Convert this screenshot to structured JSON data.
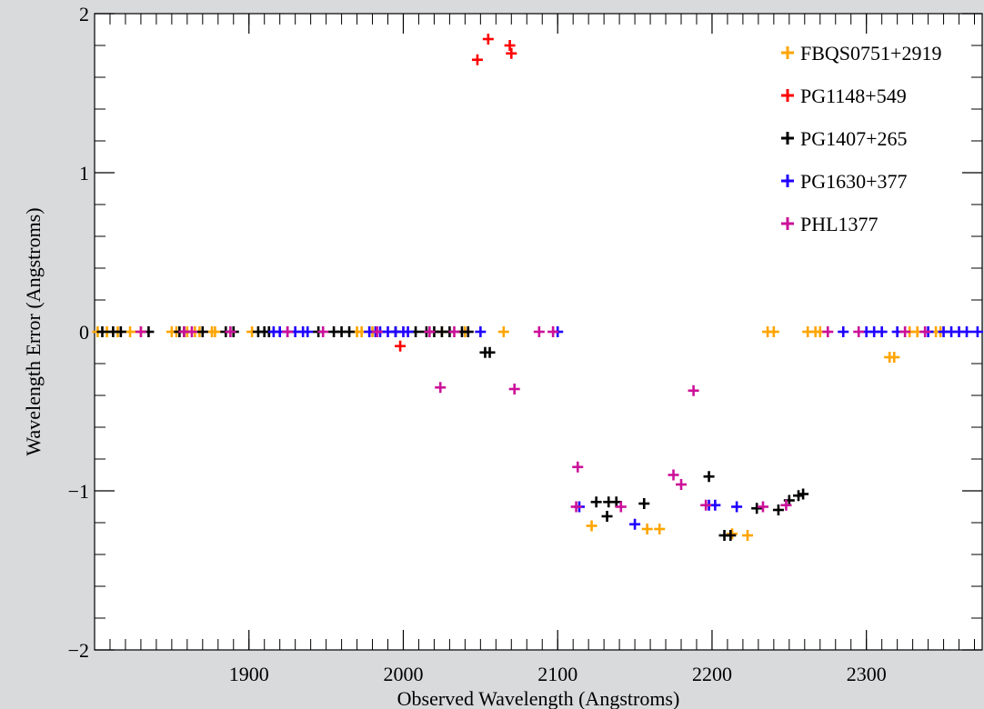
{
  "chart_data": {
    "type": "scatter",
    "xlabel": "Observed Wavelength (Angstroms)",
    "ylabel": "Wavelength Error (Angstroms)",
    "xlim": [
      1800,
      2375
    ],
    "ylim": [
      -2,
      2
    ],
    "x_ticks": [
      1900,
      2000,
      2100,
      2200,
      2300
    ],
    "y_ticks": [
      {
        "v": 2,
        "label": "2"
      },
      {
        "v": 1,
        "label": "1"
      },
      {
        "v": 0,
        "label": "0"
      },
      {
        "v": -1,
        "label": "−1"
      },
      {
        "v": -2,
        "label": "−2"
      }
    ],
    "x_minor_step": 10,
    "y_minor_step": 0.2,
    "grid": false,
    "legend_position": "top-right",
    "marker": "+",
    "series": [
      {
        "name": "FBQS0751+2919",
        "color": "#ffa500",
        "points": [
          [
            1802,
            0
          ],
          [
            1808,
            0
          ],
          [
            1815,
            0
          ],
          [
            1823,
            0
          ],
          [
            1830,
            0
          ],
          [
            1850,
            0
          ],
          [
            1853,
            0
          ],
          [
            1860,
            0
          ],
          [
            1865,
            0
          ],
          [
            1868,
            0
          ],
          [
            1876,
            0
          ],
          [
            1878,
            0
          ],
          [
            1902,
            0
          ],
          [
            1970,
            0
          ],
          [
            1973,
            0
          ],
          [
            1980,
            0
          ],
          [
            2025,
            0
          ],
          [
            2040,
            0
          ],
          [
            2065,
            0
          ],
          [
            2122,
            -1.22
          ],
          [
            2158,
            -1.24
          ],
          [
            2166,
            -1.24
          ],
          [
            2213,
            -1.27
          ],
          [
            2223,
            -1.28
          ],
          [
            2236,
            0
          ],
          [
            2240,
            0
          ],
          [
            2262,
            0
          ],
          [
            2267,
            0
          ],
          [
            2270,
            0
          ],
          [
            2315,
            -0.16
          ],
          [
            2318,
            -0.16
          ],
          [
            2328,
            0
          ],
          [
            2333,
            0
          ],
          [
            2345,
            0
          ],
          [
            2348,
            0
          ]
        ]
      },
      {
        "name": "PG1148+549",
        "color": "#ff0000",
        "points": [
          [
            1998,
            -0.09
          ],
          [
            2048,
            1.71
          ],
          [
            2055,
            1.84
          ],
          [
            2069,
            1.8
          ],
          [
            2070,
            1.75
          ]
        ]
      },
      {
        "name": "PG1407+265",
        "color": "#000000",
        "points": [
          [
            1805,
            0
          ],
          [
            1812,
            0
          ],
          [
            1817,
            0
          ],
          [
            1835,
            0
          ],
          [
            1855,
            0
          ],
          [
            1858,
            0
          ],
          [
            1870,
            0
          ],
          [
            1885,
            0
          ],
          [
            1890,
            0
          ],
          [
            1906,
            0
          ],
          [
            1910,
            0
          ],
          [
            1913,
            0
          ],
          [
            1945,
            0
          ],
          [
            1955,
            0
          ],
          [
            1960,
            0
          ],
          [
            1965,
            0
          ],
          [
            1995,
            0
          ],
          [
            2008,
            0
          ],
          [
            2015,
            0
          ],
          [
            2020,
            0
          ],
          [
            2025,
            0
          ],
          [
            2030,
            0
          ],
          [
            2038,
            0
          ],
          [
            2042,
            0
          ],
          [
            2053,
            -0.13
          ],
          [
            2056,
            -0.13
          ],
          [
            2125,
            -1.07
          ],
          [
            2132,
            -1.16
          ],
          [
            2133,
            -1.07
          ],
          [
            2138,
            -1.07
          ],
          [
            2156,
            -1.08
          ],
          [
            2198,
            -0.91
          ],
          [
            2208,
            -1.28
          ],
          [
            2212,
            -1.28
          ],
          [
            2229,
            -1.11
          ],
          [
            2243,
            -1.12
          ],
          [
            2250,
            -1.06
          ],
          [
            2256,
            -1.03
          ],
          [
            2259,
            -1.02
          ]
        ]
      },
      {
        "name": "PG1630+377",
        "color": "#1f00ff",
        "points": [
          [
            1916,
            0
          ],
          [
            1920,
            0
          ],
          [
            1925,
            0
          ],
          [
            1930,
            0
          ],
          [
            1935,
            0
          ],
          [
            1938,
            0
          ],
          [
            1978,
            0
          ],
          [
            1982,
            0
          ],
          [
            1985,
            0
          ],
          [
            1990,
            0
          ],
          [
            1995,
            0
          ],
          [
            2000,
            0
          ],
          [
            2003,
            0
          ],
          [
            2050,
            0
          ],
          [
            2100,
            0
          ],
          [
            2114,
            -1.1
          ],
          [
            2150,
            -1.21
          ],
          [
            2198,
            -1.09
          ],
          [
            2202,
            -1.09
          ],
          [
            2216,
            -1.1
          ],
          [
            2285,
            0
          ],
          [
            2300,
            0
          ],
          [
            2305,
            0
          ],
          [
            2310,
            0
          ],
          [
            2320,
            0
          ],
          [
            2340,
            0
          ],
          [
            2350,
            0
          ],
          [
            2355,
            0
          ],
          [
            2360,
            0
          ],
          [
            2365,
            0
          ],
          [
            2372,
            0
          ]
        ]
      },
      {
        "name": "PHL1377",
        "color": "#cc1199",
        "points": [
          [
            1830,
            0
          ],
          [
            1858,
            0
          ],
          [
            1863,
            0
          ],
          [
            1888,
            0
          ],
          [
            1925,
            0
          ],
          [
            1948,
            0
          ],
          [
            1983,
            0
          ],
          [
            2017,
            0
          ],
          [
            2024,
            -0.35
          ],
          [
            2033,
            0
          ],
          [
            2072,
            -0.36
          ],
          [
            2088,
            0
          ],
          [
            2097,
            0
          ],
          [
            2112,
            -1.1
          ],
          [
            2113,
            -0.85
          ],
          [
            2141,
            -1.1
          ],
          [
            2175,
            -0.9
          ],
          [
            2180,
            -0.96
          ],
          [
            2188,
            -0.37
          ],
          [
            2196,
            -1.09
          ],
          [
            2233,
            -1.1
          ],
          [
            2248,
            -1.09
          ],
          [
            2275,
            0
          ],
          [
            2295,
            0
          ],
          [
            2325,
            0
          ],
          [
            2338,
            0
          ]
        ]
      }
    ]
  }
}
